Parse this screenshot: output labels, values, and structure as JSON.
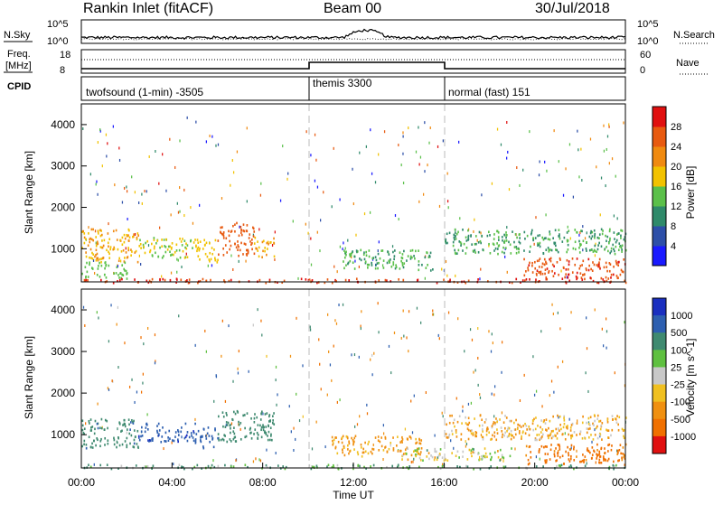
{
  "header": {
    "station": "Rankin Inlet (fitACF)",
    "beam": "Beam 00",
    "date": "30/Jul/2018"
  },
  "strips": {
    "nsky_label": "N.Sky",
    "nsearch_label": "N.Search",
    "nsky_ticks": [
      "10^5",
      "10^0"
    ],
    "nsearch_ticks": [
      "10^5",
      "10^0"
    ],
    "freq_label": "Freq.",
    "freq_unit": "[MHz]",
    "freq_ticks": [
      "18",
      "8"
    ],
    "nave_label": "Nave",
    "nave_ticks": [
      "60",
      "0"
    ],
    "cpid_label": "CPID",
    "cpid_segments": [
      {
        "name": "twofsound (1-min) -3505",
        "start_hr": 0,
        "end_hr": 10
      },
      {
        "name": "themis 3300",
        "start_hr": 10,
        "end_hr": 16
      },
      {
        "name": "normal (fast) 151",
        "start_hr": 16,
        "end_hr": 24
      }
    ]
  },
  "axes": {
    "ylabel": "Slant Range [km]",
    "xlabel": "Time UT",
    "xticks": [
      "00:00",
      "04:00",
      "08:00",
      "12:00",
      "16:00",
      "20:00",
      "00:00"
    ],
    "yticks": [
      "1000",
      "2000",
      "3000",
      "4000"
    ]
  },
  "colorbars": {
    "power": {
      "label": "Power [dB]",
      "ticks": [
        "4",
        "8",
        "12",
        "16",
        "20",
        "24",
        "28"
      ],
      "colors": [
        "#1a1aff",
        "#2d4fa8",
        "#2f8a6a",
        "#5bc04a",
        "#f2c200",
        "#f08a10",
        "#e85a10",
        "#e01010"
      ]
    },
    "velocity": {
      "label": "Velocity [m s^-1]",
      "ticks": [
        "1000",
        "500",
        "100",
        "25",
        "-25",
        "-100",
        "-500",
        "-1000"
      ],
      "colors": [
        "#1a2fbf",
        "#2d5fb0",
        "#3f8a70",
        "#5fc040",
        "#c8c8c8",
        "#f0c020",
        "#f09010",
        "#f07000",
        "#e01010"
      ]
    }
  },
  "chart_data": [
    {
      "type": "heatmap",
      "title": "Power",
      "xlabel": "Time UT",
      "ylabel": "Slant Range [km]",
      "xlim": [
        0,
        24
      ],
      "ylim": [
        200,
        4500
      ],
      "colorbar_label": "Power [dB]",
      "colorbar_range": [
        0,
        30
      ],
      "regions": [
        {
          "t": [
            0.0,
            2.5
          ],
          "r": [
            700,
            1500
          ],
          "value": 20
        },
        {
          "t": [
            2.5,
            5.0
          ],
          "r": [
            800,
            1300
          ],
          "value": 16
        },
        {
          "t": [
            5.0,
            6.0
          ],
          "r": [
            700,
            1300
          ],
          "value": 18
        },
        {
          "t": [
            6.0,
            7.6
          ],
          "r": [
            850,
            1650
          ],
          "value": 26
        },
        {
          "t": [
            7.6,
            8.5
          ],
          "r": [
            800,
            1300
          ],
          "value": 20
        },
        {
          "t": [
            0.0,
            2.0
          ],
          "r": [
            300,
            700
          ],
          "value": 14
        },
        {
          "t": [
            11.5,
            15.5
          ],
          "r": [
            500,
            1000
          ],
          "value": 12
        },
        {
          "t": [
            16.0,
            24.0
          ],
          "r": [
            900,
            1500
          ],
          "value": 12
        },
        {
          "t": [
            19.5,
            24.0
          ],
          "r": [
            300,
            800
          ],
          "value": 27
        },
        {
          "t": [
            0.0,
            24.0
          ],
          "r": [
            200,
            300
          ],
          "value": 28
        }
      ]
    },
    {
      "type": "heatmap",
      "title": "Velocity",
      "xlabel": "Time UT",
      "ylabel": "Slant Range [km]",
      "xlim": [
        0,
        24
      ],
      "ylim": [
        200,
        4500
      ],
      "colorbar_label": "Velocity [m s^-1]",
      "colorbar_range": [
        -1000,
        1000
      ],
      "regions": [
        {
          "t": [
            0.0,
            2.5
          ],
          "r": [
            700,
            1400
          ],
          "value": 400
        },
        {
          "t": [
            2.5,
            5.0
          ],
          "r": [
            850,
            1300
          ],
          "value": 900
        },
        {
          "t": [
            5.0,
            6.0
          ],
          "r": [
            700,
            1200
          ],
          "value": 800
        },
        {
          "t": [
            6.0,
            8.5
          ],
          "r": [
            850,
            1600
          ],
          "value": 300
        },
        {
          "t": [
            11.0,
            15.0
          ],
          "r": [
            500,
            1000
          ],
          "value": -150
        },
        {
          "t": [
            14.0,
            19.0
          ],
          "r": [
            400,
            700
          ],
          "value": 0
        },
        {
          "t": [
            16.0,
            24.0
          ],
          "r": [
            900,
            1500
          ],
          "value": -100
        },
        {
          "t": [
            19.5,
            24.0
          ],
          "r": [
            300,
            800
          ],
          "value": -600
        },
        {
          "t": [
            0.0,
            24.0
          ],
          "r": [
            200,
            300
          ],
          "value": 120
        }
      ]
    }
  ]
}
